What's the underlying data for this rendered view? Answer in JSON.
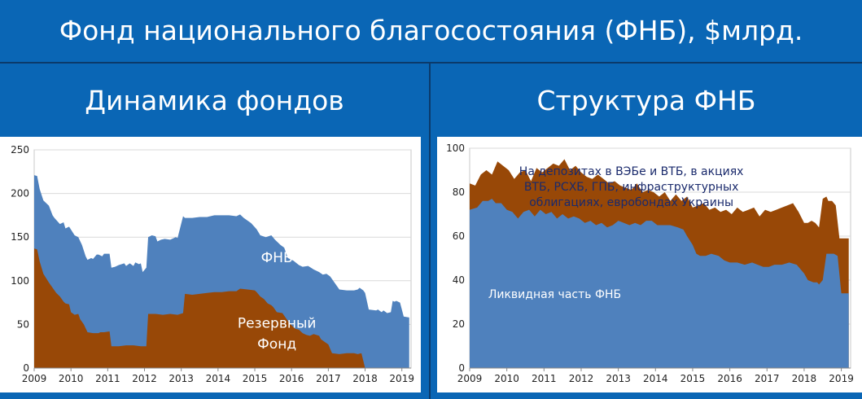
{
  "title": "Фонд национального благосостояния (ФНБ), $млрд.",
  "colors": {
    "background": "#0a66b5",
    "blue_series": "#4f81bd",
    "brown_series": "#984807",
    "divider": "#0b3a6a"
  },
  "chart_data": [
    {
      "type": "area",
      "title": "Динамика фондов",
      "xlabel": "",
      "ylabel": "",
      "xlim": [
        2009,
        2019.25
      ],
      "ylim": [
        0,
        250
      ],
      "yticks": [
        0,
        50,
        100,
        150,
        200,
        250
      ],
      "xticks": [
        2009,
        2010,
        2011,
        2012,
        2013,
        2014,
        2015,
        2016,
        2017,
        2018,
        2019
      ],
      "grid": true,
      "annotations": [
        {
          "text": "ФНБ",
          "x": 2015.6,
          "y": 127,
          "color": "white"
        },
        {
          "text": "Резервный",
          "x": 2015.6,
          "y": 52,
          "color": "white"
        },
        {
          "text": "Фонд",
          "x": 2015.6,
          "y": 28,
          "color": "white"
        }
      ],
      "series": [
        {
          "name": "ФНБ",
          "color": "#4f81bd",
          "x": [
            2009.0,
            2009.08,
            2009.15,
            2009.25,
            2009.4,
            2009.5,
            2009.55,
            2009.7,
            2009.8,
            2009.85,
            2009.95,
            2010.1,
            2010.2,
            2010.3,
            2010.4,
            2010.45,
            2010.55,
            2010.6,
            2010.7,
            2010.75,
            2010.85,
            2010.9,
            2011.05,
            2011.1,
            2011.2,
            2011.3,
            2011.45,
            2011.5,
            2011.6,
            2011.7,
            2011.75,
            2011.85,
            2011.9,
            2011.95,
            2012.05,
            2012.1,
            2012.2,
            2012.3,
            2012.35,
            2012.45,
            2012.55,
            2012.7,
            2012.85,
            2012.9,
            2013.05,
            2013.1,
            2013.3,
            2013.5,
            2013.7,
            2013.9,
            2014.1,
            2014.3,
            2014.5,
            2014.6,
            2014.7,
            2014.9,
            2015.05,
            2015.15,
            2015.3,
            2015.45,
            2015.55,
            2015.7,
            2015.8,
            2015.9,
            2016.05,
            2016.2,
            2016.3,
            2016.45,
            2016.6,
            2016.75,
            2016.85,
            2016.95,
            2017.05,
            2017.3,
            2017.5,
            2017.7,
            2017.8,
            2017.85,
            2017.95,
            2018.0,
            2018.1,
            2018.3,
            2018.35,
            2018.45,
            2018.5,
            2018.6,
            2018.7,
            2018.75,
            2018.8,
            2018.85,
            2018.95,
            2019.05,
            2019.2
          ],
          "values": [
            221,
            220,
            205,
            192,
            186,
            175,
            172,
            165,
            167,
            160,
            162,
            152,
            150,
            141,
            128,
            124,
            126,
            125,
            130,
            130,
            128,
            131,
            131,
            115,
            116,
            118,
            120,
            117,
            120,
            117,
            121,
            119,
            120,
            110,
            115,
            150,
            152,
            151,
            145,
            147,
            148,
            147,
            150,
            149,
            174,
            172,
            172,
            173,
            173,
            175,
            175,
            175,
            174,
            176,
            172,
            166,
            159,
            152,
            150,
            152,
            147,
            141,
            138,
            126,
            123,
            118,
            116,
            117,
            113,
            110,
            107,
            108,
            105,
            90,
            89,
            89,
            90,
            92,
            89,
            86,
            67,
            66,
            67,
            64,
            66,
            63,
            64,
            77,
            76,
            77,
            75,
            59,
            58
          ]
        },
        {
          "name": "Резервный Фонд",
          "color": "#984807",
          "x": [
            2009.0,
            2009.08,
            2009.15,
            2009.25,
            2009.4,
            2009.5,
            2009.6,
            2009.7,
            2009.8,
            2009.85,
            2009.95,
            2010.0,
            2010.1,
            2010.2,
            2010.25,
            2010.35,
            2010.45,
            2010.6,
            2010.75,
            2010.8,
            2010.9,
            2011.05,
            2011.1,
            2011.3,
            2011.5,
            2011.7,
            2011.9,
            2012.05,
            2012.1,
            2012.3,
            2012.5,
            2012.7,
            2012.9,
            2013.05,
            2013.1,
            2013.3,
            2013.5,
            2013.7,
            2013.9,
            2014.1,
            2014.3,
            2014.5,
            2014.6,
            2014.8,
            2015.0,
            2015.05,
            2015.15,
            2015.25,
            2015.35,
            2015.45,
            2015.5,
            2015.6,
            2015.75,
            2015.85,
            2015.95,
            2016.0,
            2016.1,
            2016.2,
            2016.3,
            2016.4,
            2016.5,
            2016.6,
            2016.75,
            2016.8,
            2016.9,
            2017.0,
            2017.1,
            2017.3,
            2017.5,
            2017.7,
            2017.8,
            2017.9,
            2018.0,
            2019.2
          ],
          "values": [
            137,
            136,
            122,
            108,
            98,
            92,
            86,
            82,
            76,
            74,
            73,
            64,
            61,
            62,
            56,
            50,
            41,
            40,
            40,
            41,
            41,
            42,
            25,
            25,
            26,
            26,
            25,
            25,
            62,
            62,
            61,
            62,
            61,
            63,
            85,
            84,
            85,
            86,
            87,
            87,
            88,
            88,
            91,
            90,
            89,
            87,
            82,
            79,
            74,
            72,
            70,
            64,
            63,
            57,
            51,
            49,
            45,
            44,
            40,
            38,
            37,
            39,
            37,
            33,
            30,
            27,
            17,
            16,
            17,
            17,
            16,
            17,
            0,
            0
          ]
        }
      ]
    },
    {
      "type": "area",
      "title": "Структура ФНБ",
      "xlabel": "",
      "ylabel": "",
      "xlim": [
        2009,
        2019.25
      ],
      "ylim": [
        0,
        100
      ],
      "yticks": [
        0,
        20,
        40,
        60,
        80,
        100
      ],
      "xticks": [
        2009,
        2010,
        2011,
        2012,
        2013,
        2014,
        2015,
        2016,
        2017,
        2018,
        2019
      ],
      "grid": true,
      "annotations": [
        {
          "text": "На депозитах в ВЭБе и ВТБ, в акциях",
          "x": 2013.35,
          "y": 90,
          "color": "navy"
        },
        {
          "text": "ВТБ, РСХБ, ГПБ, инфраструктурных",
          "x": 2013.35,
          "y": 83,
          "color": "navy"
        },
        {
          "text": "облигациях, евробондах Украины",
          "x": 2013.35,
          "y": 76,
          "color": "navy"
        },
        {
          "text": "Ликвидная часть ФНБ",
          "x": 2009.5,
          "y": 34,
          "color": "white"
        }
      ],
      "series": [
        {
          "name": "Ликвидная часть ФНБ",
          "color": "#4f81bd",
          "x": [
            2009.0,
            2009.2,
            2009.35,
            2009.5,
            2009.6,
            2009.7,
            2009.85,
            2010.0,
            2010.15,
            2010.3,
            2010.45,
            2010.6,
            2010.75,
            2010.9,
            2011.05,
            2011.2,
            2011.35,
            2011.5,
            2011.65,
            2011.8,
            2011.95,
            2012.1,
            2012.25,
            2012.4,
            2012.55,
            2012.7,
            2012.85,
            2013.0,
            2013.15,
            2013.3,
            2013.45,
            2013.6,
            2013.75,
            2013.9,
            2014.05,
            2014.2,
            2014.4,
            2014.6,
            2014.75,
            2014.85,
            2015.0,
            2015.1,
            2015.2,
            2015.35,
            2015.5,
            2015.7,
            2015.85,
            2016.0,
            2016.2,
            2016.4,
            2016.6,
            2016.75,
            2016.9,
            2017.05,
            2017.2,
            2017.4,
            2017.6,
            2017.8,
            2017.9,
            2018.0,
            2018.1,
            2018.25,
            2018.35,
            2018.4,
            2018.5,
            2018.6,
            2018.7,
            2018.8,
            2018.9,
            2019.0,
            2019.2
          ],
          "values": [
            72,
            73,
            76,
            76,
            77,
            75,
            75,
            72,
            71,
            68,
            71,
            72,
            69,
            72,
            70,
            71,
            68,
            70,
            68,
            69,
            68,
            66,
            67,
            65,
            66,
            64,
            65,
            67,
            66,
            65,
            66,
            65,
            67,
            67,
            65,
            65,
            65,
            64,
            63,
            60,
            56,
            52,
            51,
            51,
            52,
            51,
            49,
            48,
            48,
            47,
            48,
            47,
            46,
            46,
            47,
            47,
            48,
            47,
            45,
            43,
            40,
            39,
            39,
            38,
            40,
            52,
            52,
            52,
            51,
            34,
            34
          ]
        },
        {
          "name": "На депозитах в ВЭБе и ВТБ, в акциях ВТБ, РСХБ, ГПБ, инфраструктурных облигациях, евробондах Украины",
          "color": "#984807",
          "x": [
            2009.0,
            2009.15,
            2009.3,
            2009.45,
            2009.6,
            2009.75,
            2009.9,
            2010.05,
            2010.2,
            2010.35,
            2010.5,
            2010.65,
            2010.8,
            2010.95,
            2011.1,
            2011.25,
            2011.4,
            2011.55,
            2011.7,
            2011.85,
            2012.0,
            2012.15,
            2012.3,
            2012.45,
            2012.6,
            2012.75,
            2012.9,
            2013.05,
            2013.2,
            2013.35,
            2013.5,
            2013.65,
            2013.8,
            2013.95,
            2014.1,
            2014.25,
            2014.4,
            2014.55,
            2014.7,
            2014.85,
            2015.0,
            2015.15,
            2015.3,
            2015.45,
            2015.6,
            2015.75,
            2015.9,
            2016.05,
            2016.2,
            2016.35,
            2016.5,
            2016.65,
            2016.8,
            2016.95,
            2017.1,
            2017.25,
            2017.4,
            2017.55,
            2017.7,
            2017.85,
            2018.0,
            2018.1,
            2018.2,
            2018.3,
            2018.4,
            2018.5,
            2018.6,
            2018.65,
            2018.75,
            2018.85,
            2018.95,
            2019.05,
            2019.2
          ],
          "values": [
            84,
            83,
            88,
            90,
            88,
            94,
            92,
            90,
            86,
            89,
            90,
            85,
            91,
            89,
            91,
            93,
            92,
            95,
            90,
            92,
            89,
            87,
            86,
            88,
            86,
            84,
            85,
            83,
            82,
            81,
            84,
            80,
            81,
            80,
            78,
            80,
            76,
            79,
            76,
            78,
            73,
            74,
            75,
            72,
            73,
            71,
            72,
            70,
            73,
            71,
            72,
            73,
            69,
            72,
            71,
            72,
            73,
            74,
            75,
            71,
            66,
            66,
            67,
            66,
            64,
            77,
            78,
            76,
            76,
            74,
            59,
            59,
            59
          ]
        }
      ]
    }
  ]
}
